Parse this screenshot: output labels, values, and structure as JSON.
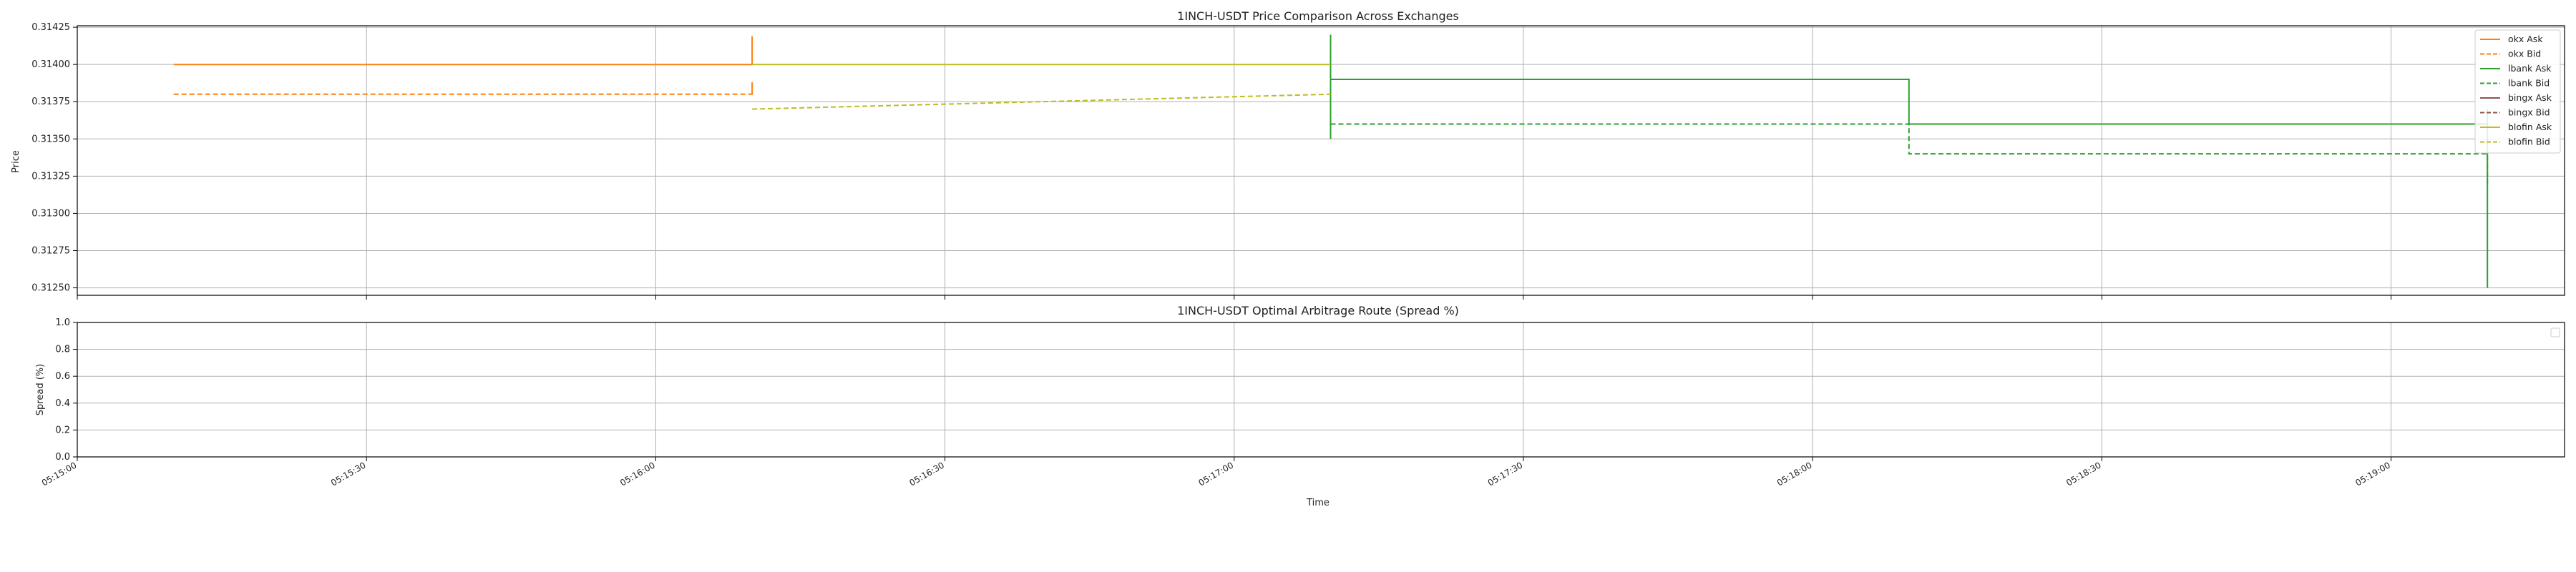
{
  "chart_data": [
    {
      "type": "line",
      "title": "1INCH-USDT Price Comparison Across Exchanges",
      "ylabel": "Price",
      "xlabel": "",
      "xlim": [
        "05:15:00",
        "05:19:18"
      ],
      "ylim": [
        0.31245,
        0.31426
      ],
      "yticks": [
        "0.31250",
        "0.31275",
        "0.31300",
        "0.31325",
        "0.31350",
        "0.31375",
        "0.31400",
        "0.31425"
      ],
      "grid": true,
      "legend_position": "top-right",
      "series": [
        {
          "name": "okx Ask",
          "color": "#ff7f0e",
          "style": "solid",
          "points": [
            [
              "05:15:10",
              0.314
            ],
            [
              "05:16:10",
              0.314
            ],
            [
              "05:16:10",
              0.31419
            ],
            [
              "05:16:10",
              0.314
            ]
          ]
        },
        {
          "name": "okx Bid",
          "color": "#ff7f0e",
          "style": "dashed",
          "points": [
            [
              "05:15:10",
              0.3138
            ],
            [
              "05:16:10",
              0.3138
            ],
            [
              "05:16:10",
              0.31388
            ],
            [
              "05:16:10",
              0.3138
            ]
          ]
        },
        {
          "name": "lbank Ask",
          "color": "#2ca02c",
          "style": "solid",
          "points": [
            [
              "05:17:10",
              0.3135
            ],
            [
              "05:17:10",
              0.3142
            ],
            [
              "05:17:10",
              0.3139
            ],
            [
              "05:18:10",
              0.3139
            ],
            [
              "05:18:10",
              0.3136
            ],
            [
              "05:19:10",
              0.3136
            ],
            [
              "05:19:10",
              0.3125
            ],
            [
              "05:19:10",
              0.3137
            ]
          ]
        },
        {
          "name": "lbank Bid",
          "color": "#2ca02c",
          "style": "dashed",
          "points": [
            [
              "05:17:10",
              0.3136
            ],
            [
              "05:18:10",
              0.3136
            ],
            [
              "05:18:10",
              0.3134
            ],
            [
              "05:19:10",
              0.3134
            ],
            [
              "05:19:10",
              0.3132
            ]
          ]
        },
        {
          "name": "bingx Ask",
          "color": "#8c564b",
          "style": "solid",
          "points": []
        },
        {
          "name": "bingx Bid",
          "color": "#8c564b",
          "style": "dashed",
          "points": []
        },
        {
          "name": "blofin Ask",
          "color": "#bcbd22",
          "style": "solid",
          "points": [
            [
              "05:16:10",
              0.314
            ],
            [
              "05:17:10",
              0.314
            ]
          ]
        },
        {
          "name": "blofin Bid",
          "color": "#bcbd22",
          "style": "dashed",
          "points": [
            [
              "05:16:10",
              0.3137
            ],
            [
              "05:17:10",
              0.3138
            ]
          ]
        }
      ]
    },
    {
      "type": "line",
      "title": "1INCH-USDT Optimal Arbitrage Route (Spread %)",
      "xlabel": "Time",
      "ylabel": "Spread (%)",
      "xlim": [
        "05:15:00",
        "05:19:18"
      ],
      "ylim": [
        0.0,
        1.0
      ],
      "yticks": [
        "0.0",
        "0.2",
        "0.4",
        "0.6",
        "0.8",
        "1.0"
      ],
      "xticks": [
        "05:15:00",
        "05:15:30",
        "05:16:00",
        "05:16:30",
        "05:17:00",
        "05:17:30",
        "05:18:00",
        "05:18:30",
        "05:19:00"
      ],
      "grid": true,
      "legend_position": "top-right",
      "series": []
    }
  ]
}
